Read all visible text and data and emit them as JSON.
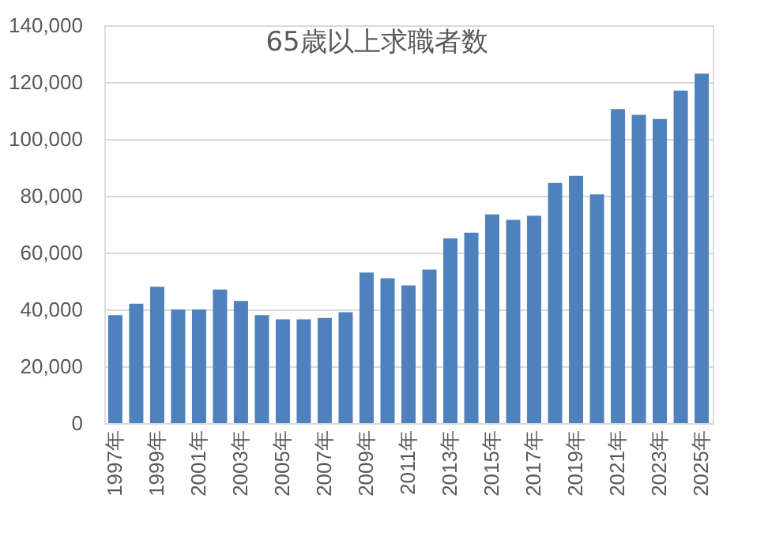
{
  "chart_data": {
    "type": "bar",
    "title": "65歳以上求職者数",
    "categories": [
      "1997年",
      null,
      "1999年",
      null,
      "2001年",
      null,
      "2003年",
      null,
      "2005年",
      null,
      "2007年",
      null,
      "2009年",
      null,
      "2011年",
      null,
      "2013年",
      null,
      "2015年",
      null,
      "2017年",
      null,
      "2019年",
      null,
      "2021年",
      null,
      "2023年",
      null,
      "2025年"
    ],
    "values": [
      38000,
      42000,
      48000,
      40000,
      40000,
      47000,
      43000,
      38000,
      36500,
      36500,
      37000,
      39000,
      53000,
      51000,
      48500,
      54000,
      65000,
      67000,
      73500,
      71500,
      73000,
      84500,
      87000,
      80500,
      110500,
      108500,
      107000,
      117000,
      123000
    ],
    "color": "#4f81bd",
    "ylim": [
      0,
      140000
    ],
    "yticks": [
      0,
      {
        "value": 20000,
        "label": "20,000"
      },
      {
        "value": 40000,
        "label": "40,000"
      },
      {
        "value": 60000,
        "label": "60,000"
      },
      {
        "value": 80000,
        "label": "80,000"
      },
      {
        "value": 100000,
        "label": "100,000"
      },
      {
        "value": 120000,
        "label": "120,000"
      },
      {
        "value": 140000,
        "label": "140,000"
      }
    ],
    "grid": "y"
  }
}
